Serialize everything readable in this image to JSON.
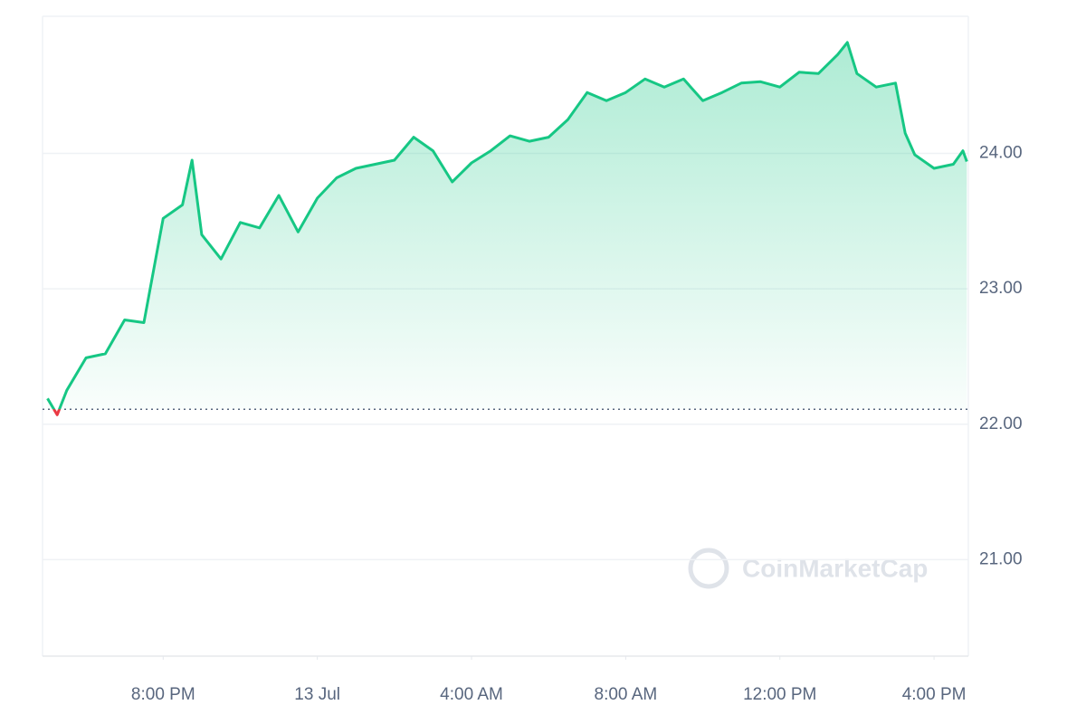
{
  "chart_data": {
    "type": "line",
    "x": [
      17,
      17.25,
      17.5,
      18,
      18.5,
      19,
      19.5,
      20,
      20.5,
      20.75,
      21,
      21.5,
      22,
      22.5,
      23,
      23.5,
      24,
      24.5,
      25,
      25.5,
      26,
      26.5,
      27,
      27.5,
      28,
      28.5,
      29,
      29.5,
      30,
      30.5,
      31,
      31.5,
      32,
      32.5,
      33,
      33.5,
      34,
      34.5,
      35,
      35.5,
      36,
      36.5,
      37,
      37.5,
      37.75,
      38,
      38.5,
      39,
      39.25,
      39.5,
      40,
      40.5,
      40.75,
      40.85
    ],
    "values": [
      22.19,
      22.07,
      22.25,
      22.49,
      22.52,
      22.77,
      22.75,
      23.52,
      23.62,
      23.95,
      23.4,
      23.22,
      23.49,
      23.45,
      23.69,
      23.42,
      23.67,
      23.82,
      23.89,
      23.92,
      23.95,
      24.12,
      24.02,
      23.79,
      23.93,
      24.02,
      24.13,
      24.09,
      24.12,
      24.25,
      24.45,
      24.39,
      24.45,
      24.55,
      24.49,
      24.55,
      24.39,
      24.45,
      24.52,
      24.53,
      24.49,
      24.6,
      24.59,
      24.73,
      24.82,
      24.59,
      24.49,
      24.52,
      24.15,
      23.99,
      23.89,
      23.92,
      24.02,
      23.94
    ],
    "baseline": 22.11,
    "color": "#16c784",
    "down_color": "#ea3943",
    "xlim": [
      16.87,
      40.89
    ],
    "xticks": [
      {
        "value": 20,
        "label": "8:00 PM"
      },
      {
        "value": 24,
        "label": "13 Jul"
      },
      {
        "value": 28,
        "label": "4:00 AM"
      },
      {
        "value": 32,
        "label": "8:00 AM"
      },
      {
        "value": 36,
        "label": "12:00 PM"
      },
      {
        "value": 40,
        "label": "4:00 PM"
      }
    ],
    "ylim": [
      20.287,
      25.013
    ],
    "yticks": [
      {
        "value": 21,
        "label": "21.00"
      },
      {
        "value": 22,
        "label": "22.00"
      },
      {
        "value": 23,
        "label": "23.00"
      },
      {
        "value": 24,
        "label": "24.00"
      }
    ],
    "grid": true,
    "watermark": "CoinMarketCap"
  }
}
